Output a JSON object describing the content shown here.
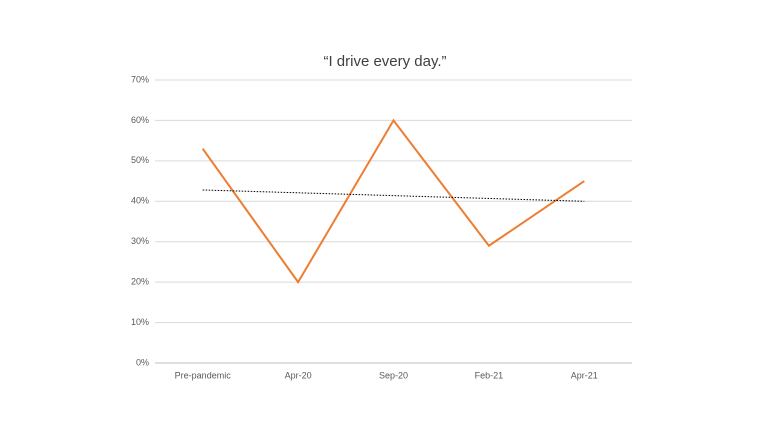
{
  "chart_data": {
    "type": "line",
    "title": "“I drive every day.”",
    "categories": [
      "Pre-pandemic",
      "Apr-20",
      "Sep-20",
      "Feb-21",
      "Apr-21"
    ],
    "series": [
      {
        "color": "#ed7d31",
        "values": [
          53,
          20,
          60,
          29,
          45
        ]
      }
    ],
    "ylim": [
      0,
      70
    ],
    "yticks": [
      {
        "value": 0,
        "label": "0%"
      },
      {
        "value": 10,
        "label": "10%"
      },
      {
        "value": 20,
        "label": "20%"
      },
      {
        "value": 30,
        "label": "30%"
      },
      {
        "value": 40,
        "label": "40%"
      },
      {
        "value": 50,
        "label": "50%"
      },
      {
        "value": 60,
        "label": "60%"
      },
      {
        "value": 70,
        "label": "70%"
      }
    ],
    "grid": true,
    "trendline": "linear"
  }
}
